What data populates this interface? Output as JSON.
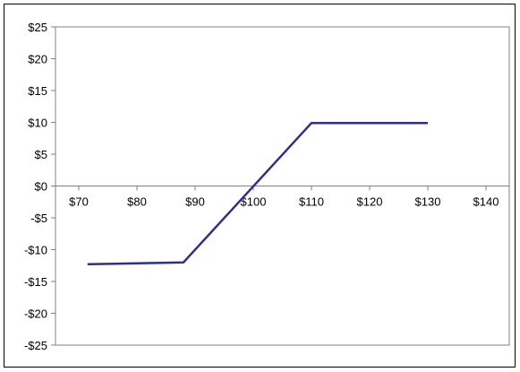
{
  "chart_data": {
    "type": "line",
    "title": "",
    "xlabel": "",
    "ylabel": "",
    "xlim": [
      66,
      144
    ],
    "ylim": [
      -25,
      25
    ],
    "x_ticks": [
      70,
      80,
      90,
      100,
      110,
      120,
      130,
      140
    ],
    "x_tick_labels": [
      "$70",
      "$80",
      "$90",
      "$100",
      "$110",
      "$120",
      "$130",
      "$140"
    ],
    "y_ticks": [
      25,
      20,
      15,
      10,
      5,
      0,
      -5,
      -10,
      -15,
      -20,
      -25
    ],
    "y_tick_labels": [
      "$25",
      "$20",
      "$15",
      "$10",
      "$5",
      "$0",
      "-$5",
      "-$10",
      "-$15",
      "-$20",
      "-$25"
    ],
    "grid": false,
    "legend": "none",
    "series": [
      {
        "x": [
          71.5,
          88,
          110,
          130
        ],
        "y": [
          -12.3,
          -12.0,
          9.9,
          9.9
        ]
      }
    ],
    "colors": {
      "line": "#2e2e8c",
      "axis": "#808080",
      "frame": "#000000"
    }
  }
}
